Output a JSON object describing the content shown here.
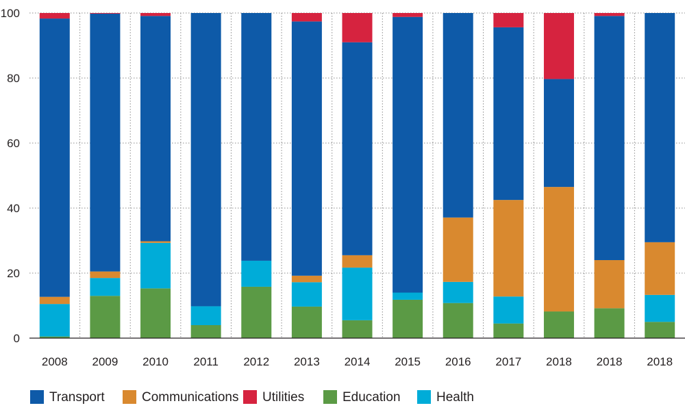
{
  "chart_data": {
    "type": "bar",
    "stacked": true,
    "title": "",
    "xlabel": "",
    "ylabel": "",
    "ylim": [
      0,
      100
    ],
    "yticks": [
      0,
      20,
      40,
      60,
      80,
      100
    ],
    "grid": "horizontal dotted",
    "legend_position": "bottom",
    "categories": [
      "2008",
      "2009",
      "2010",
      "2011",
      "2012",
      "2013",
      "2014",
      "2015",
      "2016",
      "2017",
      "2018",
      "2018",
      "2018"
    ],
    "series": [
      {
        "name": "Education",
        "color": "#5b9a45",
        "values": [
          0.5,
          13,
          15.3,
          4,
          15.8,
          9.7,
          5.5,
          11.8,
          10.8,
          4.5,
          8.2,
          9.2,
          5
        ]
      },
      {
        "name": "Health",
        "color": "#00acd8",
        "values": [
          10,
          5.5,
          14,
          5.8,
          8,
          7.5,
          16.2,
          2.2,
          6.5,
          8.3,
          0,
          0,
          8.3
        ]
      },
      {
        "name": "Communications",
        "color": "#d9892f",
        "values": [
          2.2,
          2,
          0.5,
          0,
          0,
          2,
          3.8,
          0,
          19.8,
          29.7,
          38.3,
          14.8,
          16.2
        ]
      },
      {
        "name": "Transport",
        "color": "#0e5aa8",
        "values": [
          85.6,
          79.3,
          69.3,
          90.2,
          76.2,
          78.2,
          65.5,
          84.8,
          62.9,
          53.1,
          33.2,
          75.1,
          70.5
        ]
      },
      {
        "name": "Utilities",
        "color": "#d6233f",
        "values": [
          1.7,
          0.2,
          0.9,
          0,
          0,
          2.6,
          9,
          1.2,
          0,
          4.4,
          20.3,
          0.9,
          0
        ]
      }
    ],
    "legend": [
      {
        "name": "Transport",
        "color": "#0e5aa8"
      },
      {
        "name": "Communications",
        "color": "#d9892f"
      },
      {
        "name": "Utilities",
        "color": "#d6233f"
      },
      {
        "name": "Education",
        "color": "#5b9a45"
      },
      {
        "name": "Health",
        "color": "#00acd8"
      }
    ]
  }
}
